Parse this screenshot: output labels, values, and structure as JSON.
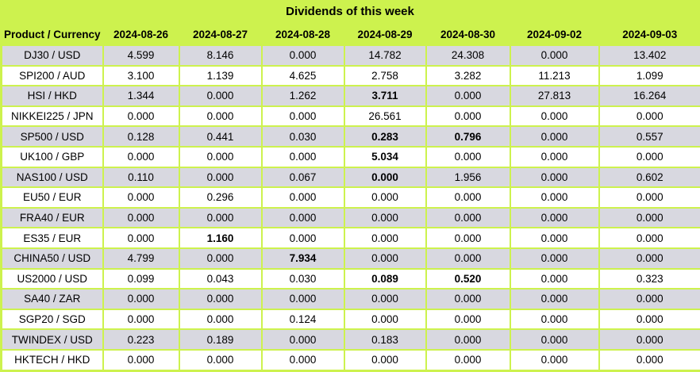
{
  "title": "Dividends of this week",
  "colors": {
    "header_green": "#cdf24e",
    "row_gray": "#d8d8e0",
    "row_white": "#ffffff",
    "text": "#000000"
  },
  "table": {
    "product_header": "Product / Currency",
    "date_headers": [
      "2024-08-26",
      "2024-08-27",
      "2024-08-28",
      "2024-08-29",
      "2024-08-30",
      "2024-09-02",
      "2024-09-03"
    ],
    "rows": [
      {
        "product": "DJ30 / USD",
        "values": [
          "4.599",
          "8.146",
          "0.000",
          "14.782",
          "24.308",
          "0.000",
          "13.402"
        ],
        "bold": []
      },
      {
        "product": "SPI200 / AUD",
        "values": [
          "3.100",
          "1.139",
          "4.625",
          "2.758",
          "3.282",
          "11.213",
          "1.099"
        ],
        "bold": []
      },
      {
        "product": "HSI / HKD",
        "values": [
          "1.344",
          "0.000",
          "1.262",
          "3.711",
          "0.000",
          "27.813",
          "16.264"
        ],
        "bold": [
          3
        ]
      },
      {
        "product": "NIKKEI225 / JPN",
        "values": [
          "0.000",
          "0.000",
          "0.000",
          "26.561",
          "0.000",
          "0.000",
          "0.000"
        ],
        "bold": []
      },
      {
        "product": "SP500 / USD",
        "values": [
          "0.128",
          "0.441",
          "0.030",
          "0.283",
          "0.796",
          "0.000",
          "0.557"
        ],
        "bold": [
          3,
          4
        ]
      },
      {
        "product": "UK100 / GBP",
        "values": [
          "0.000",
          "0.000",
          "0.000",
          "5.034",
          "0.000",
          "0.000",
          "0.000"
        ],
        "bold": [
          3
        ]
      },
      {
        "product": "NAS100 / USD",
        "values": [
          "0.110",
          "0.000",
          "0.067",
          "0.000",
          "1.956",
          "0.000",
          "0.602"
        ],
        "bold": [
          3
        ]
      },
      {
        "product": "EU50 / EUR",
        "values": [
          "0.000",
          "0.296",
          "0.000",
          "0.000",
          "0.000",
          "0.000",
          "0.000"
        ],
        "bold": []
      },
      {
        "product": "FRA40 / EUR",
        "values": [
          "0.000",
          "0.000",
          "0.000",
          "0.000",
          "0.000",
          "0.000",
          "0.000"
        ],
        "bold": []
      },
      {
        "product": "ES35 / EUR",
        "values": [
          "0.000",
          "1.160",
          "0.000",
          "0.000",
          "0.000",
          "0.000",
          "0.000"
        ],
        "bold": [
          1
        ]
      },
      {
        "product": "CHINA50 / USD",
        "values": [
          "4.799",
          "0.000",
          "7.934",
          "0.000",
          "0.000",
          "0.000",
          "0.000"
        ],
        "bold": [
          2
        ]
      },
      {
        "product": "US2000 / USD",
        "values": [
          "0.099",
          "0.043",
          "0.030",
          "0.089",
          "0.520",
          "0.000",
          "0.323"
        ],
        "bold": [
          3,
          4
        ]
      },
      {
        "product": "SA40 / ZAR",
        "values": [
          "0.000",
          "0.000",
          "0.000",
          "0.000",
          "0.000",
          "0.000",
          "0.000"
        ],
        "bold": []
      },
      {
        "product": "SGP20 / SGD",
        "values": [
          "0.000",
          "0.000",
          "0.124",
          "0.000",
          "0.000",
          "0.000",
          "0.000"
        ],
        "bold": []
      },
      {
        "product": "TWINDEX / USD",
        "values": [
          "0.223",
          "0.189",
          "0.000",
          "0.183",
          "0.000",
          "0.000",
          "0.000"
        ],
        "bold": []
      },
      {
        "product": "HKTECH / HKD",
        "values": [
          "0.000",
          "0.000",
          "0.000",
          "0.000",
          "0.000",
          "0.000",
          "0.000"
        ],
        "bold": []
      }
    ]
  }
}
